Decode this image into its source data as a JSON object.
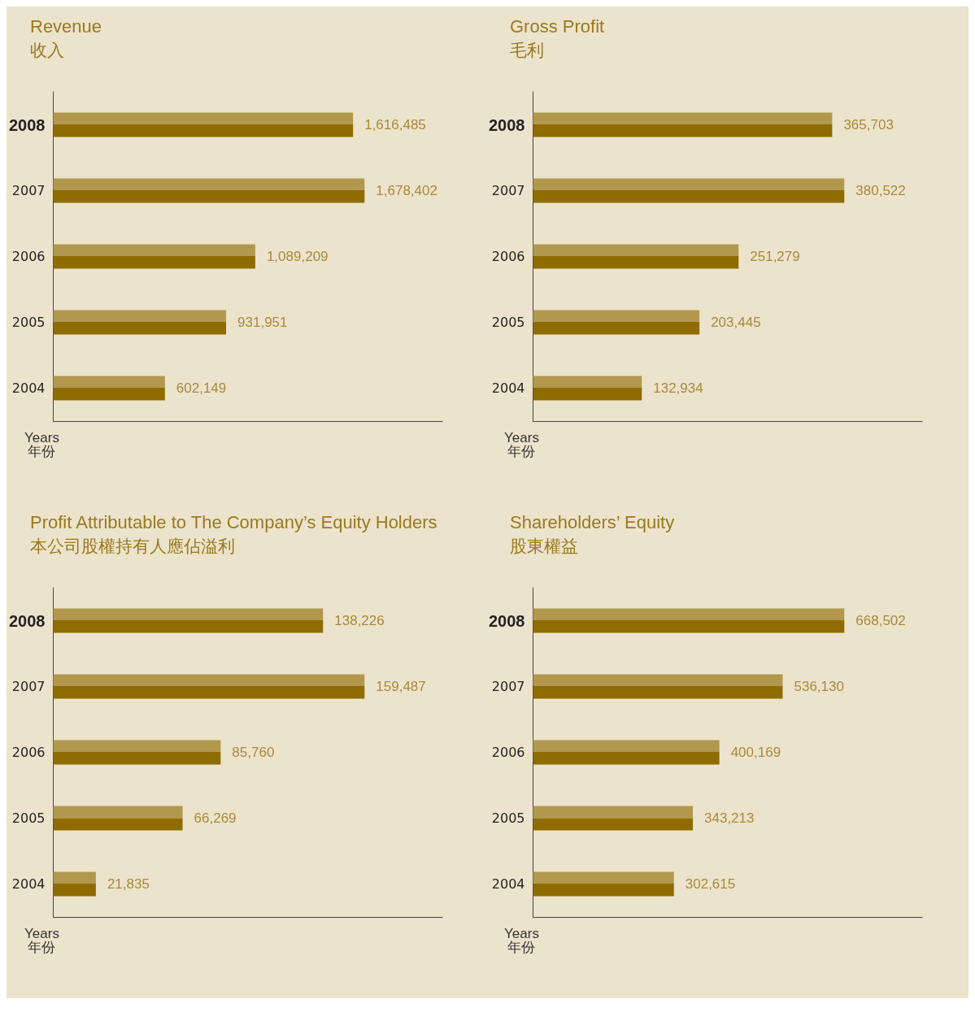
{
  "chart_data": [
    {
      "type": "bar",
      "orientation": "horizontal",
      "title": "Revenue",
      "subtitle": "收入",
      "ylabel": "Years\n年份",
      "categories": [
        "2008",
        "2007",
        "2006",
        "2005",
        "2004"
      ],
      "values": [
        1616485,
        1678402,
        1089209,
        931951,
        602149
      ],
      "value_labels": [
        "1,616,485",
        "1,678,402",
        "1,089,209",
        "931,951",
        "602,149"
      ],
      "color": "#8f6c00",
      "tick_labels": "y"
    },
    {
      "type": "bar",
      "orientation": "horizontal",
      "title": "Gross Profit",
      "subtitle": "毛利",
      "ylabel": "Years\n年份",
      "categories": [
        "2008",
        "2007",
        "2006",
        "2005",
        "2004"
      ],
      "values": [
        365703,
        380522,
        251279,
        203445,
        132934
      ],
      "value_labels": [
        "365,703",
        "380,522",
        "251,279",
        "203,445",
        "132,934"
      ],
      "color": "#8f6c00",
      "tick_labels": "y"
    },
    {
      "type": "bar",
      "orientation": "horizontal",
      "title": "Profit Attributable to The Company’s Equity Holders",
      "subtitle": "本公司股權持有人應佔溢利",
      "ylabel": "Years\n年份",
      "categories": [
        "2008",
        "2007",
        "2006",
        "2005",
        "2004"
      ],
      "values": [
        138226,
        159487,
        85760,
        66269,
        21835
      ],
      "value_labels": [
        "138,226",
        "159,487",
        "85,760",
        "66,269",
        "21,835"
      ],
      "color": "#8f6c00",
      "tick_labels": "y"
    },
    {
      "type": "bar",
      "orientation": "horizontal",
      "title": "Shareholders’ Equity",
      "subtitle": "股東權益",
      "ylabel": "Years\n年份",
      "categories": [
        "2008",
        "2007",
        "2006",
        "2005",
        "2004"
      ],
      "values": [
        668502,
        536130,
        400169,
        343213,
        302615
      ],
      "value_labels": [
        "668,502",
        "536,130",
        "400,169",
        "343,213",
        "302,615"
      ],
      "color": "#8f6c00",
      "tick_labels": "y"
    }
  ]
}
